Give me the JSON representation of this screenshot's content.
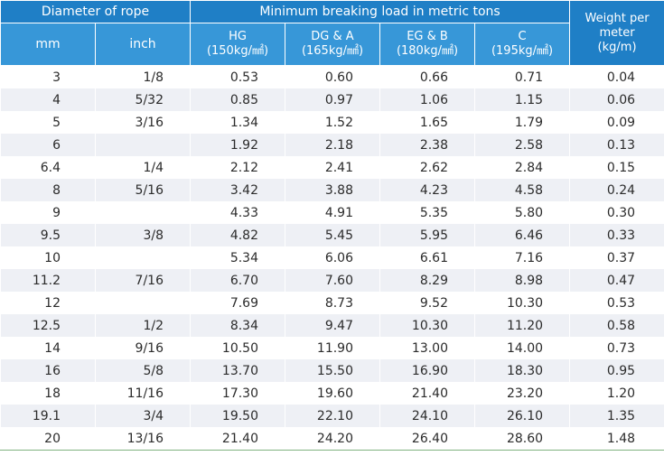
{
  "header": {
    "diameter_group": "Diameter of rope",
    "load_group": "Minimum breaking load in metric tons",
    "weight_line1": "Weight per",
    "weight_line2": "meter",
    "weight_line3": "(kg/m)",
    "mm": "mm",
    "inch": "inch",
    "grades": [
      {
        "name": "HG",
        "unit": "(150kg/㎟)"
      },
      {
        "name": "DG & A",
        "unit": "(165kg/㎟)"
      },
      {
        "name": "EG & B",
        "unit": "(180kg/㎟)"
      },
      {
        "name": "C",
        "unit": "(195kg/㎟)"
      }
    ]
  },
  "rows": [
    {
      "mm": "3",
      "inch": "1/8",
      "hg": "0.53",
      "dga": "0.60",
      "egb": "0.66",
      "c": "0.71",
      "w": "0.04"
    },
    {
      "mm": "4",
      "inch": "5/32",
      "hg": "0.85",
      "dga": "0.97",
      "egb": "1.06",
      "c": "1.15",
      "w": "0.06"
    },
    {
      "mm": "5",
      "inch": "3/16",
      "hg": "1.34",
      "dga": "1.52",
      "egb": "1.65",
      "c": "1.79",
      "w": "0.09"
    },
    {
      "mm": "6",
      "inch": "",
      "hg": "1.92",
      "dga": "2.18",
      "egb": "2.38",
      "c": "2.58",
      "w": "0.13"
    },
    {
      "mm": "6.4",
      "inch": "1/4",
      "hg": "2.12",
      "dga": "2.41",
      "egb": "2.62",
      "c": "2.84",
      "w": "0.15"
    },
    {
      "mm": "8",
      "inch": "5/16",
      "hg": "3.42",
      "dga": "3.88",
      "egb": "4.23",
      "c": "4.58",
      "w": "0.24"
    },
    {
      "mm": "9",
      "inch": "",
      "hg": "4.33",
      "dga": "4.91",
      "egb": "5.35",
      "c": "5.80",
      "w": "0.30"
    },
    {
      "mm": "9.5",
      "inch": "3/8",
      "hg": "4.82",
      "dga": "5.45",
      "egb": "5.95",
      "c": "6.46",
      "w": "0.33"
    },
    {
      "mm": "10",
      "inch": "",
      "hg": "5.34",
      "dga": "6.06",
      "egb": "6.61",
      "c": "7.16",
      "w": "0.37"
    },
    {
      "mm": "11.2",
      "inch": "7/16",
      "hg": "6.70",
      "dga": "7.60",
      "egb": "8.29",
      "c": "8.98",
      "w": "0.47"
    },
    {
      "mm": "12",
      "inch": "",
      "hg": "7.69",
      "dga": "8.73",
      "egb": "9.52",
      "c": "10.30",
      "w": "0.53"
    },
    {
      "mm": "12.5",
      "inch": "1/2",
      "hg": "8.34",
      "dga": "9.47",
      "egb": "10.30",
      "c": "11.20",
      "w": "0.58"
    },
    {
      "mm": "14",
      "inch": "9/16",
      "hg": "10.50",
      "dga": "11.90",
      "egb": "13.00",
      "c": "14.00",
      "w": "0.73"
    },
    {
      "mm": "16",
      "inch": "5/8",
      "hg": "13.70",
      "dga": "15.50",
      "egb": "16.90",
      "c": "18.30",
      "w": "0.95"
    },
    {
      "mm": "18",
      "inch": "11/16",
      "hg": "17.30",
      "dga": "19.60",
      "egb": "21.40",
      "c": "23.20",
      "w": "1.20"
    },
    {
      "mm": "19.1",
      "inch": "3/4",
      "hg": "19.50",
      "dga": "22.10",
      "egb": "24.10",
      "c": "26.10",
      "w": "1.35"
    },
    {
      "mm": "20",
      "inch": "13/16",
      "hg": "21.40",
      "dga": "24.20",
      "egb": "26.40",
      "c": "28.60",
      "w": "1.48"
    }
  ]
}
